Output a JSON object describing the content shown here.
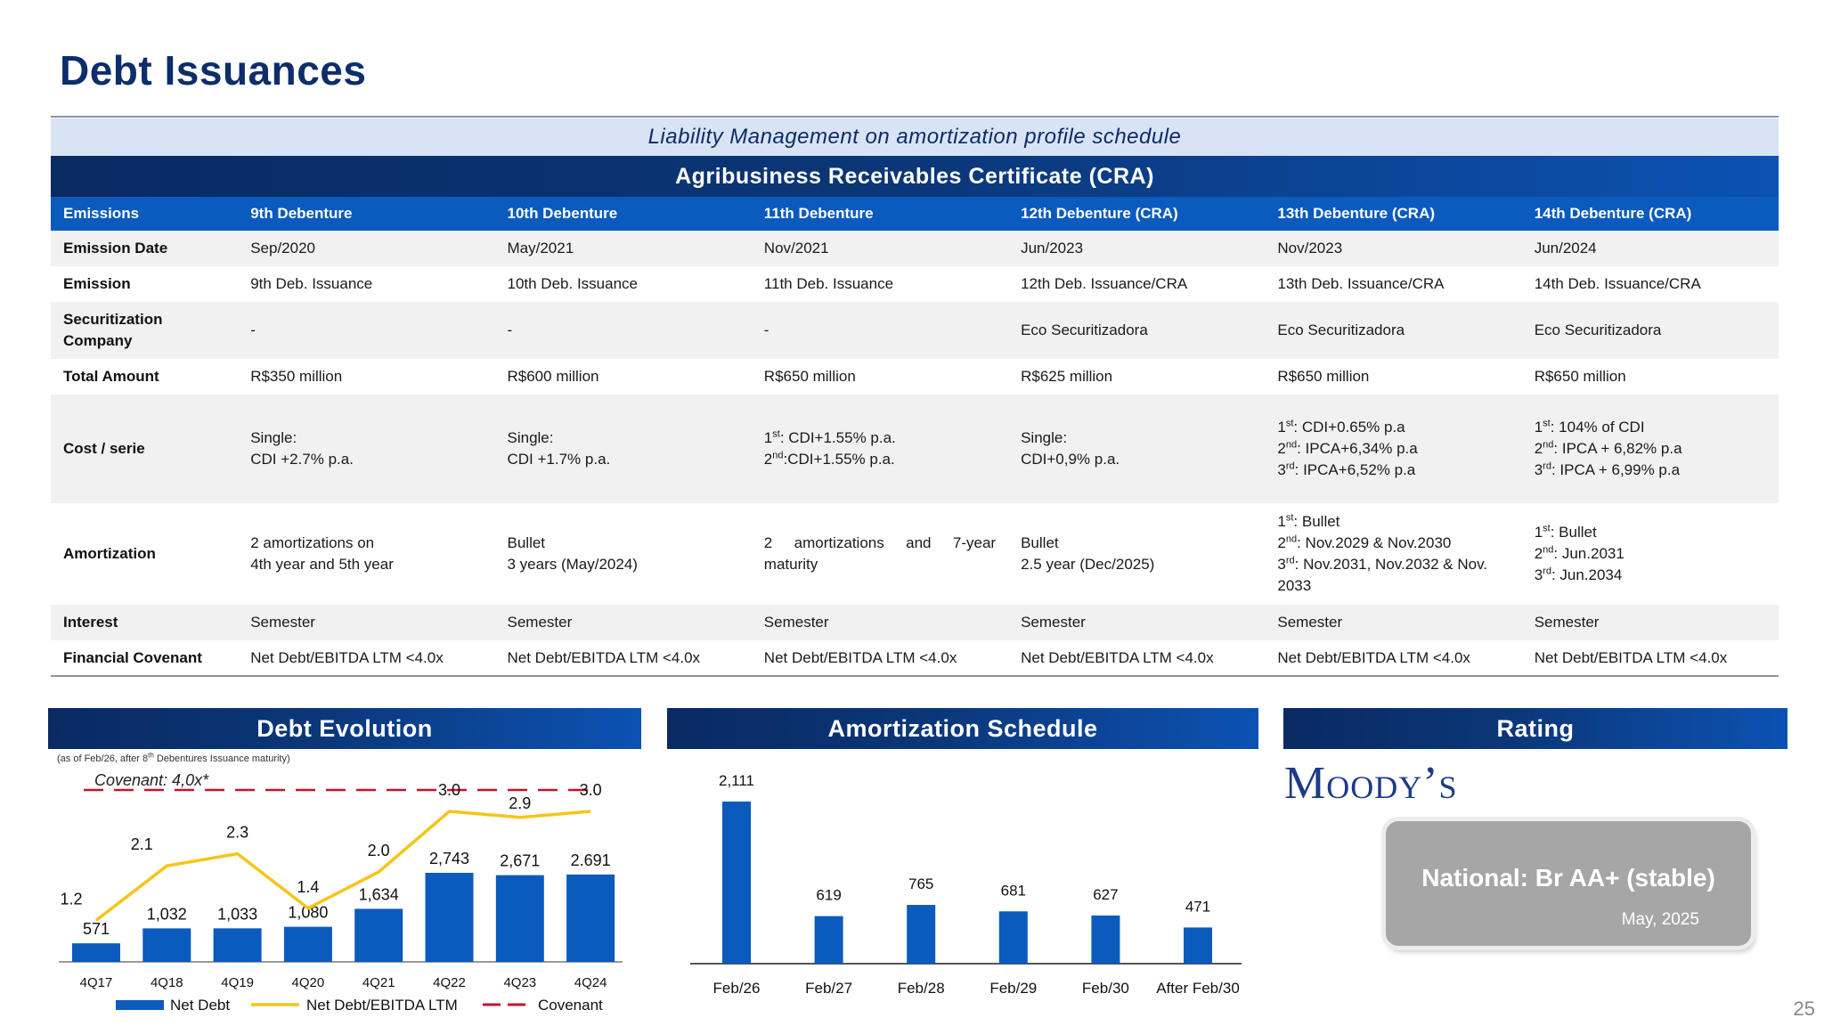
{
  "title": "Debt Issuances",
  "banner_light": "Liability Management on amortization profile schedule",
  "banner_dark": "Agribusiness Receivables Certificate (CRA)",
  "table": {
    "headers": [
      "Emissions",
      "9th Debenture",
      "10th Debenture",
      "11th Debenture",
      "12th Debenture (CRA)",
      "13th Debenture (CRA)",
      "14th Debenture (CRA)"
    ],
    "rows": [
      {
        "label": "Emission Date",
        "cells": [
          "Sep/2020",
          "May/2021",
          "Nov/2021",
          "Jun/2023",
          "Nov/2023",
          "Jun/2024"
        ]
      },
      {
        "label": "Emission",
        "cells": [
          "9th Deb. Issuance",
          "10th Deb. Issuance",
          "11th Deb. Issuance",
          "12th Deb. Issuance/CRA",
          "13th Deb. Issuance/CRA",
          "14th Deb. Issuance/CRA"
        ]
      },
      {
        "label": "Securitization Company",
        "cells": [
          "-",
          "-",
          "-",
          "Eco Securitizadora",
          "Eco Securitizadora",
          "Eco Securitizadora"
        ]
      },
      {
        "label": "Total Amount",
        "cells": [
          "R$350 million",
          "R$600 million",
          "R$650 million",
          "R$625 million",
          "R$650 million",
          "R$650 million"
        ]
      },
      {
        "label": "Cost / serie",
        "cells": [
          [
            {
              "t": "Single:"
            },
            {
              "t": "CDI +2.7% p.a."
            }
          ],
          [
            {
              "t": "Single:"
            },
            {
              "t": "CDI +1.7% p.a."
            }
          ],
          [
            {
              "t": "1",
              "sup": "st",
              "rest": ": CDI+1.55% p.a."
            },
            {
              "t": "2",
              "sup": "nd",
              "rest": ":CDI+1.55% p.a."
            }
          ],
          [
            {
              "t": "Single:"
            },
            {
              "t": "CDI+0,9% p.a."
            }
          ],
          [
            {
              "t": "1",
              "sup": "st",
              "rest": ": CDI+0.65% p.a"
            },
            {
              "t": "2",
              "sup": "nd",
              "rest": ": IPCA+6,34% p.a"
            },
            {
              "t": "3",
              "sup": "rd",
              "rest": ": IPCA+6,52% p.a"
            }
          ],
          [
            {
              "t": "1",
              "sup": "st",
              "rest": ": 104% of CDI"
            },
            {
              "t": "2",
              "sup": "nd",
              "rest": ": IPCA + 6,82% p.a"
            },
            {
              "t": "3",
              "sup": "rd",
              "rest": ": IPCA + 6,99% p.a"
            }
          ]
        ]
      },
      {
        "label": "Amortization",
        "cells": [
          [
            {
              "t": "2 amortizations on"
            },
            {
              "t": "4th year and 5th year"
            }
          ],
          [
            {
              "t": "Bullet"
            },
            {
              "t": "3 years (May/2024)"
            }
          ],
          [
            {
              "t": "2 amortizations and 7-year",
              "justify": true
            },
            {
              "t": "maturity"
            }
          ],
          [
            {
              "t": "Bullet"
            },
            {
              "t": "2.5 year (Dec/2025)"
            }
          ],
          [
            {
              "t": "1",
              "sup": "st",
              "rest": ": Bullet"
            },
            {
              "t": "2",
              "sup": "nd",
              "rest": ": Nov.2029 & Nov.2030"
            },
            {
              "t": "3",
              "sup": "rd",
              "rest": ": Nov.2031, Nov.2032 & Nov."
            },
            {
              "t": "2033"
            }
          ],
          [
            {
              "t": "1",
              "sup": "st",
              "rest": ": Bullet"
            },
            {
              "t": "2",
              "sup": "nd",
              "rest": ": Jun.2031"
            },
            {
              "t": "3",
              "sup": "rd",
              "rest": ": Jun.2034"
            }
          ]
        ]
      },
      {
        "label": "Interest",
        "cells": [
          "Semester",
          "Semester",
          "Semester",
          "Semester",
          "Semester",
          "Semester"
        ]
      },
      {
        "label": "Financial Covenant",
        "cells": [
          "Net Debt/EBITDA LTM <4.0x",
          "Net Debt/EBITDA LTM <4.0x",
          "Net Debt/EBITDA LTM <4.0x",
          "Net Debt/EBITDA LTM <4.0x",
          "Net Debt/EBITDA LTM <4.0x",
          "Net Debt/EBITDA LTM <4.0x"
        ]
      }
    ]
  },
  "debt_section": {
    "header": "Debt Evolution",
    "note_pre": "(as of Feb/26, after 8",
    "note_sup": "th",
    "note_post": " Debentures Issuance maturity)"
  },
  "amort_section": {
    "header": "Amortization Schedule"
  },
  "rating": {
    "header": "Rating",
    "logo_text": "Moody’s",
    "text": "National: Br AA+ (stable)",
    "date": "May, 2025"
  },
  "page_number": "25",
  "colors": {
    "bar": "#0a5bbd",
    "line": "#f5c518",
    "covenant": "#c8102e",
    "navy": "#0d2d6b"
  },
  "chart_data": [
    {
      "type": "bar",
      "title": "Debt Evolution",
      "categories": [
        "4Q17",
        "4Q18",
        "4Q19",
        "4Q20",
        "4Q21",
        "4Q22",
        "4Q23",
        "4Q24"
      ],
      "series": [
        {
          "name": "Net Debt",
          "kind": "bar",
          "values": [
            571,
            1032,
            1033,
            1080,
            1634,
            2743,
            2671,
            2691
          ],
          "labels": [
            "571",
            "1,032",
            "1,033",
            "1,080",
            "1,634",
            "2,743",
            "2,671",
            "2.691"
          ]
        },
        {
          "name": "Net Debt/EBITDA LTM",
          "kind": "line",
          "values": [
            1.2,
            2.1,
            2.3,
            1.4,
            2.0,
            3.0,
            2.9,
            3.0
          ],
          "labels": [
            "1.2",
            "2.1",
            "2.3",
            "1.4",
            "2.0",
            "3.0",
            "2.9",
            "3.0"
          ]
        },
        {
          "name": "Covenant",
          "kind": "dashed-line",
          "value": 4.0
        }
      ],
      "annotation": "Covenant: 4,0x*",
      "legend": [
        "Net Debt",
        "Net Debt/EBITDA LTM",
        "Covenant"
      ],
      "legend_position": "bottom"
    },
    {
      "type": "bar",
      "title": "Amortization Schedule",
      "categories": [
        "Feb/26",
        "Feb/27",
        "Feb/28",
        "Feb/29",
        "Feb/30",
        "After Feb/30"
      ],
      "values": [
        2111,
        619,
        765,
        681,
        627,
        471
      ],
      "labels": [
        "2,111",
        "619",
        "765",
        "681",
        "627",
        "471"
      ]
    }
  ]
}
